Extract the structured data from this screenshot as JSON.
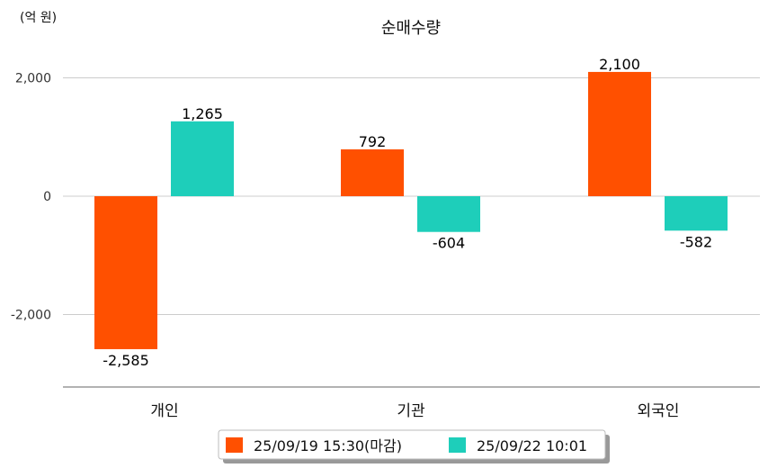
{
  "chart_data": {
    "type": "bar",
    "title": "순매수량",
    "ylabel": "(억 원)",
    "xlabel": "",
    "categories": [
      "개인",
      "기관",
      "외국인"
    ],
    "series": [
      {
        "name": "25/09/19 15:30(마감)",
        "color": "#FF5000",
        "values": [
          -2585,
          792,
          2100
        ],
        "labels": [
          "-2,585",
          "792",
          "2,100"
        ]
      },
      {
        "name": "25/09/22 10:01",
        "color": "#1ECEBA",
        "values": [
          1265,
          -604,
          -582
        ],
        "labels": [
          "1,265",
          "-604",
          "-582"
        ]
      }
    ],
    "yticks": [
      2000,
      0,
      -2000
    ],
    "ytick_labels": [
      "2,000",
      "0",
      "-2,000"
    ],
    "ylim": [
      -3230,
      2000
    ],
    "grid": true,
    "legend_position": "bottom"
  }
}
